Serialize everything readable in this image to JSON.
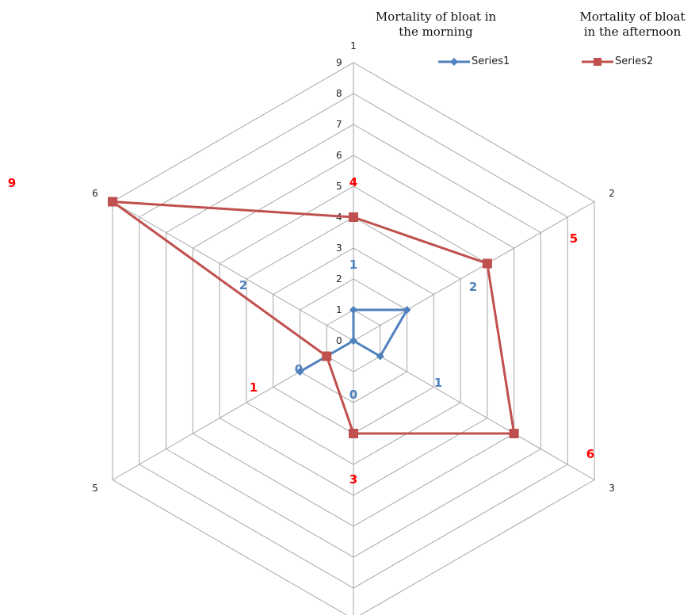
{
  "captions": {
    "morning": "Mortality of bloat in the morning",
    "afternoon": "Mortality of bloat in the afternoon"
  },
  "chart_data": {
    "type": "radar",
    "categories": [
      "1",
      "2",
      "3",
      "4",
      "5",
      "6"
    ],
    "radial_ticks": [
      0,
      1,
      2,
      3,
      4,
      5,
      6,
      7,
      8,
      9
    ],
    "rlim": [
      0,
      9
    ],
    "grid": true,
    "legend_position": "top-right",
    "series": [
      {
        "name": "Series1",
        "color": "#4f81bd",
        "marker": "diamond",
        "values": [
          1,
          2,
          1,
          0,
          2,
          0
        ]
      },
      {
        "name": "Series2",
        "color": "#c0504d",
        "marker": "square",
        "values": [
          4,
          5,
          6,
          3,
          1,
          9
        ]
      }
    ],
    "annotations": [
      {
        "text": "9",
        "color": "#ff0000"
      },
      {
        "text": "4",
        "color": "#ff0000"
      },
      {
        "text": "1",
        "color": "#4f81bd"
      },
      {
        "text": "5",
        "color": "#ff0000"
      },
      {
        "text": "2",
        "color": "#4f81bd"
      },
      {
        "text": "2",
        "color": "#4f81bd"
      },
      {
        "text": "0",
        "color": "#4f81bd"
      },
      {
        "text": "1",
        "color": "#ff0000"
      },
      {
        "text": "0",
        "color": "#4f81bd"
      },
      {
        "text": "1",
        "color": "#4f81bd"
      },
      {
        "text": "6",
        "color": "#ff0000"
      },
      {
        "text": "3",
        "color": "#ff0000"
      }
    ]
  }
}
